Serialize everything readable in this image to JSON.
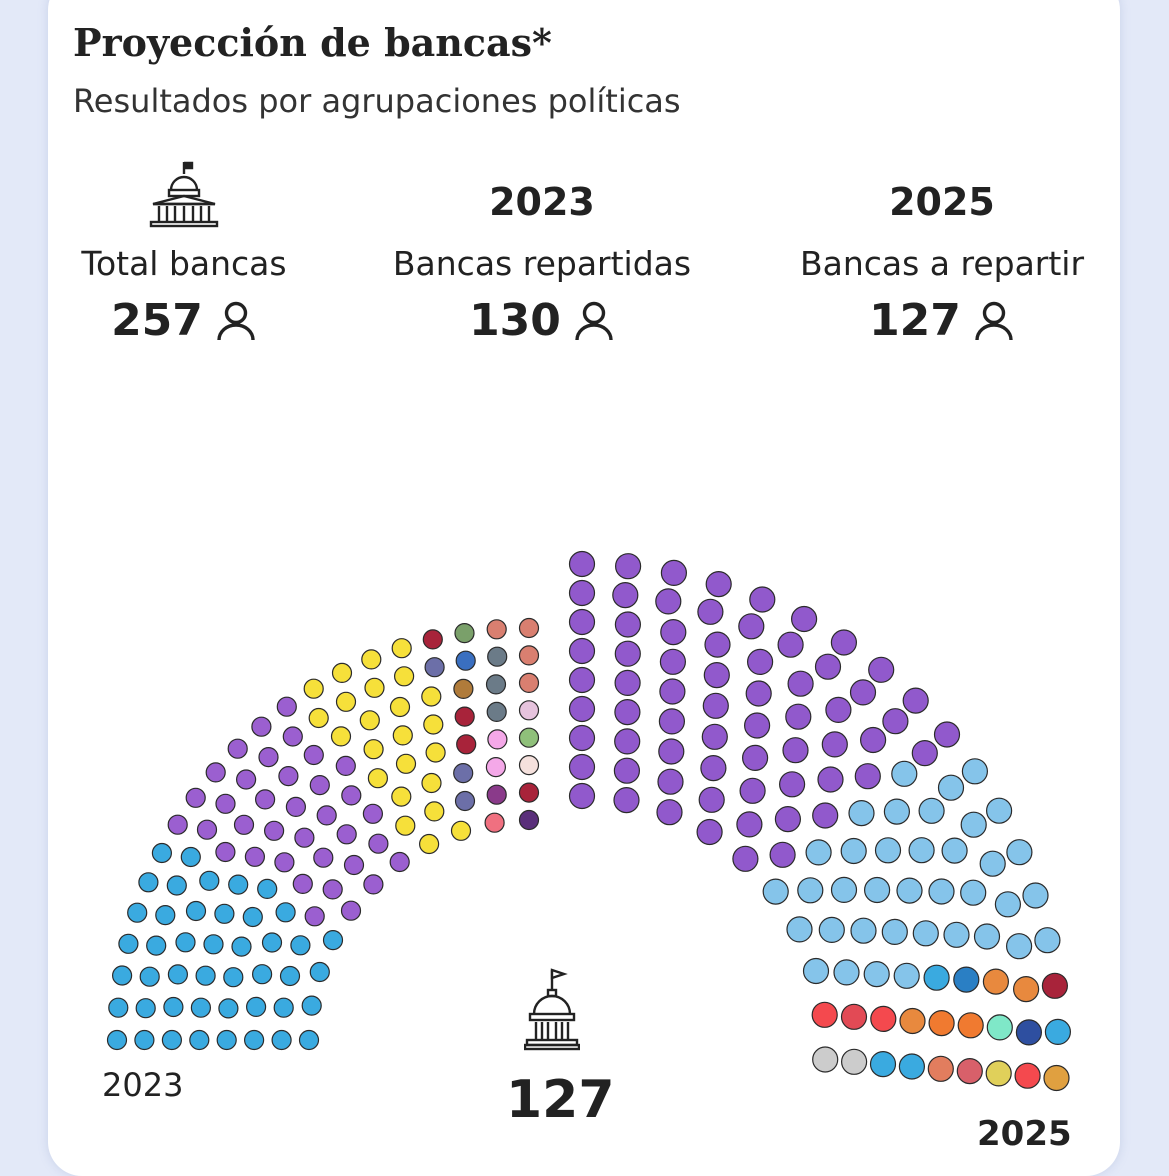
{
  "header": {
    "title": "Proyección de bancas*",
    "subtitle": "Resultados por agrupaciones políticas"
  },
  "stats": [
    {
      "year": "",
      "label": "Total bancas",
      "value": "257"
    },
    {
      "year": "2023",
      "label": "Bancas repartidas",
      "value": "130"
    },
    {
      "year": "2025",
      "label": "Bancas a repartir",
      "value": "127"
    }
  ],
  "icons": {
    "congress": "congress-building-icon",
    "person": "person-icon"
  },
  "chart_data": {
    "type": "parliament",
    "title": "",
    "total_seats": 257,
    "center_label": "127",
    "left_label": "2023",
    "right_label": "2025",
    "halves": [
      {
        "name": "2023",
        "seats": 130,
        "colors_outer_to_inner": [
          "#3aaae0",
          "#3aaae0",
          "#3aaae0",
          "#3aaae0",
          "#3aaae0",
          "#3aaae0",
          "#3aaae0",
          "#3aaae0",
          "#3aaae0",
          "#3aaae0",
          "#3aaae0",
          "#3aaae0",
          "#3aaae0",
          "#3aaae0",
          "#3aaae0",
          "#3aaae0",
          "#3aaae0",
          "#3aaae0",
          "#3aaae0",
          "#3aaae0",
          "#3aaae0",
          "#3aaae0",
          "#3aaae0",
          "#3aaae0",
          "#3aaae0",
          "#3aaae0",
          "#3aaae0",
          "#3aaae0",
          "#3aaae0",
          "#3aaae0",
          "#3aaae0",
          "#3aaae0",
          "#3aaae0",
          "#3aaae0",
          "#3aaae0",
          "#3aaae0",
          "#3aaae0",
          "#3aaae0",
          "#3aaae0",
          "#3aaae0",
          "#3aaae0",
          "#3aaae0",
          "#3aaae0",
          "#3aaae0",
          "#3aaae0",
          "#9b5fd0",
          "#9b5fd0",
          "#9b5fd0",
          "#9b5fd0",
          "#9b5fd0",
          "#9b5fd0",
          "#9b5fd0",
          "#9b5fd0",
          "#9b5fd0",
          "#9b5fd0",
          "#9b5fd0",
          "#9b5fd0",
          "#9b5fd0",
          "#9b5fd0",
          "#9b5fd0",
          "#9b5fd0",
          "#9b5fd0",
          "#9b5fd0",
          "#9b5fd0",
          "#9b5fd0",
          "#9b5fd0",
          "#9b5fd0",
          "#9b5fd0",
          "#9b5fd0",
          "#9b5fd0",
          "#9b5fd0",
          "#9b5fd0",
          "#9b5fd0",
          "#9b5fd0",
          "#9b5fd0",
          "#9b5fd0",
          "#9b5fd0",
          "#9b5fd0",
          "#9b5fd0",
          "#9b5fd0",
          "#9b5fd0",
          "#f6e03a",
          "#f6e03a",
          "#f6e03a",
          "#f6e03a",
          "#f6e03a",
          "#f6e03a",
          "#f6e03a",
          "#f6e03a",
          "#f6e03a",
          "#f6e03a",
          "#f6e03a",
          "#f6e03a",
          "#f6e03a",
          "#f6e03a",
          "#f6e03a",
          "#f6e03a",
          "#f6e03a",
          "#f6e03a",
          "#f6e03a",
          "#f6e03a",
          "#f6e03a",
          "#f6e03a",
          "#f6e03a",
          "#f6e03a",
          "#6c6fa8",
          "#6c6fa8",
          "#6c6fa8",
          "#a8233a",
          "#a8233a",
          "#a8233a",
          "#b07b3a",
          "#3a6fc0",
          "#7aa06a",
          "#f07080",
          "#8a3a8a",
          "#f4a8e8",
          "#f4a8e8",
          "#6b7b88",
          "#6b7b88",
          "#6b7b88",
          "#d97f70",
          "#d97f70",
          "#d97f70",
          "#d97f70",
          "#e6c3dd",
          "#8fc07a",
          "#f5e1dd",
          "#a8233a",
          "#5a2f7a"
        ]
      },
      {
        "name": "2025",
        "seats": 127,
        "colors_outer_to_inner": [
          "#9159cc",
          "#9159cc",
          "#9159cc",
          "#9159cc",
          "#9159cc",
          "#9159cc",
          "#9159cc",
          "#9159cc",
          "#9159cc",
          "#9159cc",
          "#9159cc",
          "#9159cc",
          "#9159cc",
          "#9159cc",
          "#9159cc",
          "#9159cc",
          "#9159cc",
          "#9159cc",
          "#9159cc",
          "#9159cc",
          "#9159cc",
          "#9159cc",
          "#9159cc",
          "#9159cc",
          "#9159cc",
          "#9159cc",
          "#9159cc",
          "#9159cc",
          "#9159cc",
          "#9159cc",
          "#9159cc",
          "#9159cc",
          "#9159cc",
          "#9159cc",
          "#9159cc",
          "#9159cc",
          "#9159cc",
          "#9159cc",
          "#9159cc",
          "#9159cc",
          "#9159cc",
          "#9159cc",
          "#9159cc",
          "#9159cc",
          "#9159cc",
          "#9159cc",
          "#9159cc",
          "#9159cc",
          "#9159cc",
          "#9159cc",
          "#9159cc",
          "#9159cc",
          "#9159cc",
          "#9159cc",
          "#9159cc",
          "#9159cc",
          "#9159cc",
          "#9159cc",
          "#9159cc",
          "#9159cc",
          "#9159cc",
          "#9159cc",
          "#9159cc",
          "#9159cc",
          "#9159cc",
          "#9159cc",
          "#9159cc",
          "#85c4ea",
          "#85c4ea",
          "#85c4ea",
          "#85c4ea",
          "#85c4ea",
          "#85c4ea",
          "#85c4ea",
          "#85c4ea",
          "#85c4ea",
          "#85c4ea",
          "#85c4ea",
          "#85c4ea",
          "#85c4ea",
          "#85c4ea",
          "#85c4ea",
          "#85c4ea",
          "#85c4ea",
          "#85c4ea",
          "#85c4ea",
          "#85c4ea",
          "#85c4ea",
          "#85c4ea",
          "#85c4ea",
          "#85c4ea",
          "#85c4ea",
          "#85c4ea",
          "#85c4ea",
          "#85c4ea",
          "#85c4ea",
          "#85c4ea",
          "#85c4ea",
          "#85c4ea",
          "#85c4ea",
          "#85c4ea",
          "#85c4ea",
          "#85c4ea",
          "#85c4ea",
          "#3aaae0",
          "#2a7fc4",
          "#e8893e",
          "#a8233a",
          "#e8893e",
          "#f4494e",
          "#e24a55",
          "#f4494e",
          "#e8893e",
          "#f07a30",
          "#f07a30",
          "#7fe8c8",
          "#3aaae0",
          "#2e4fa0",
          "#e0a040",
          "#f4494e",
          "#e0d05a",
          "#d8606a",
          "#e27d5e",
          "#3aaae0",
          "#3aaae0"
        ]
      }
    ]
  }
}
